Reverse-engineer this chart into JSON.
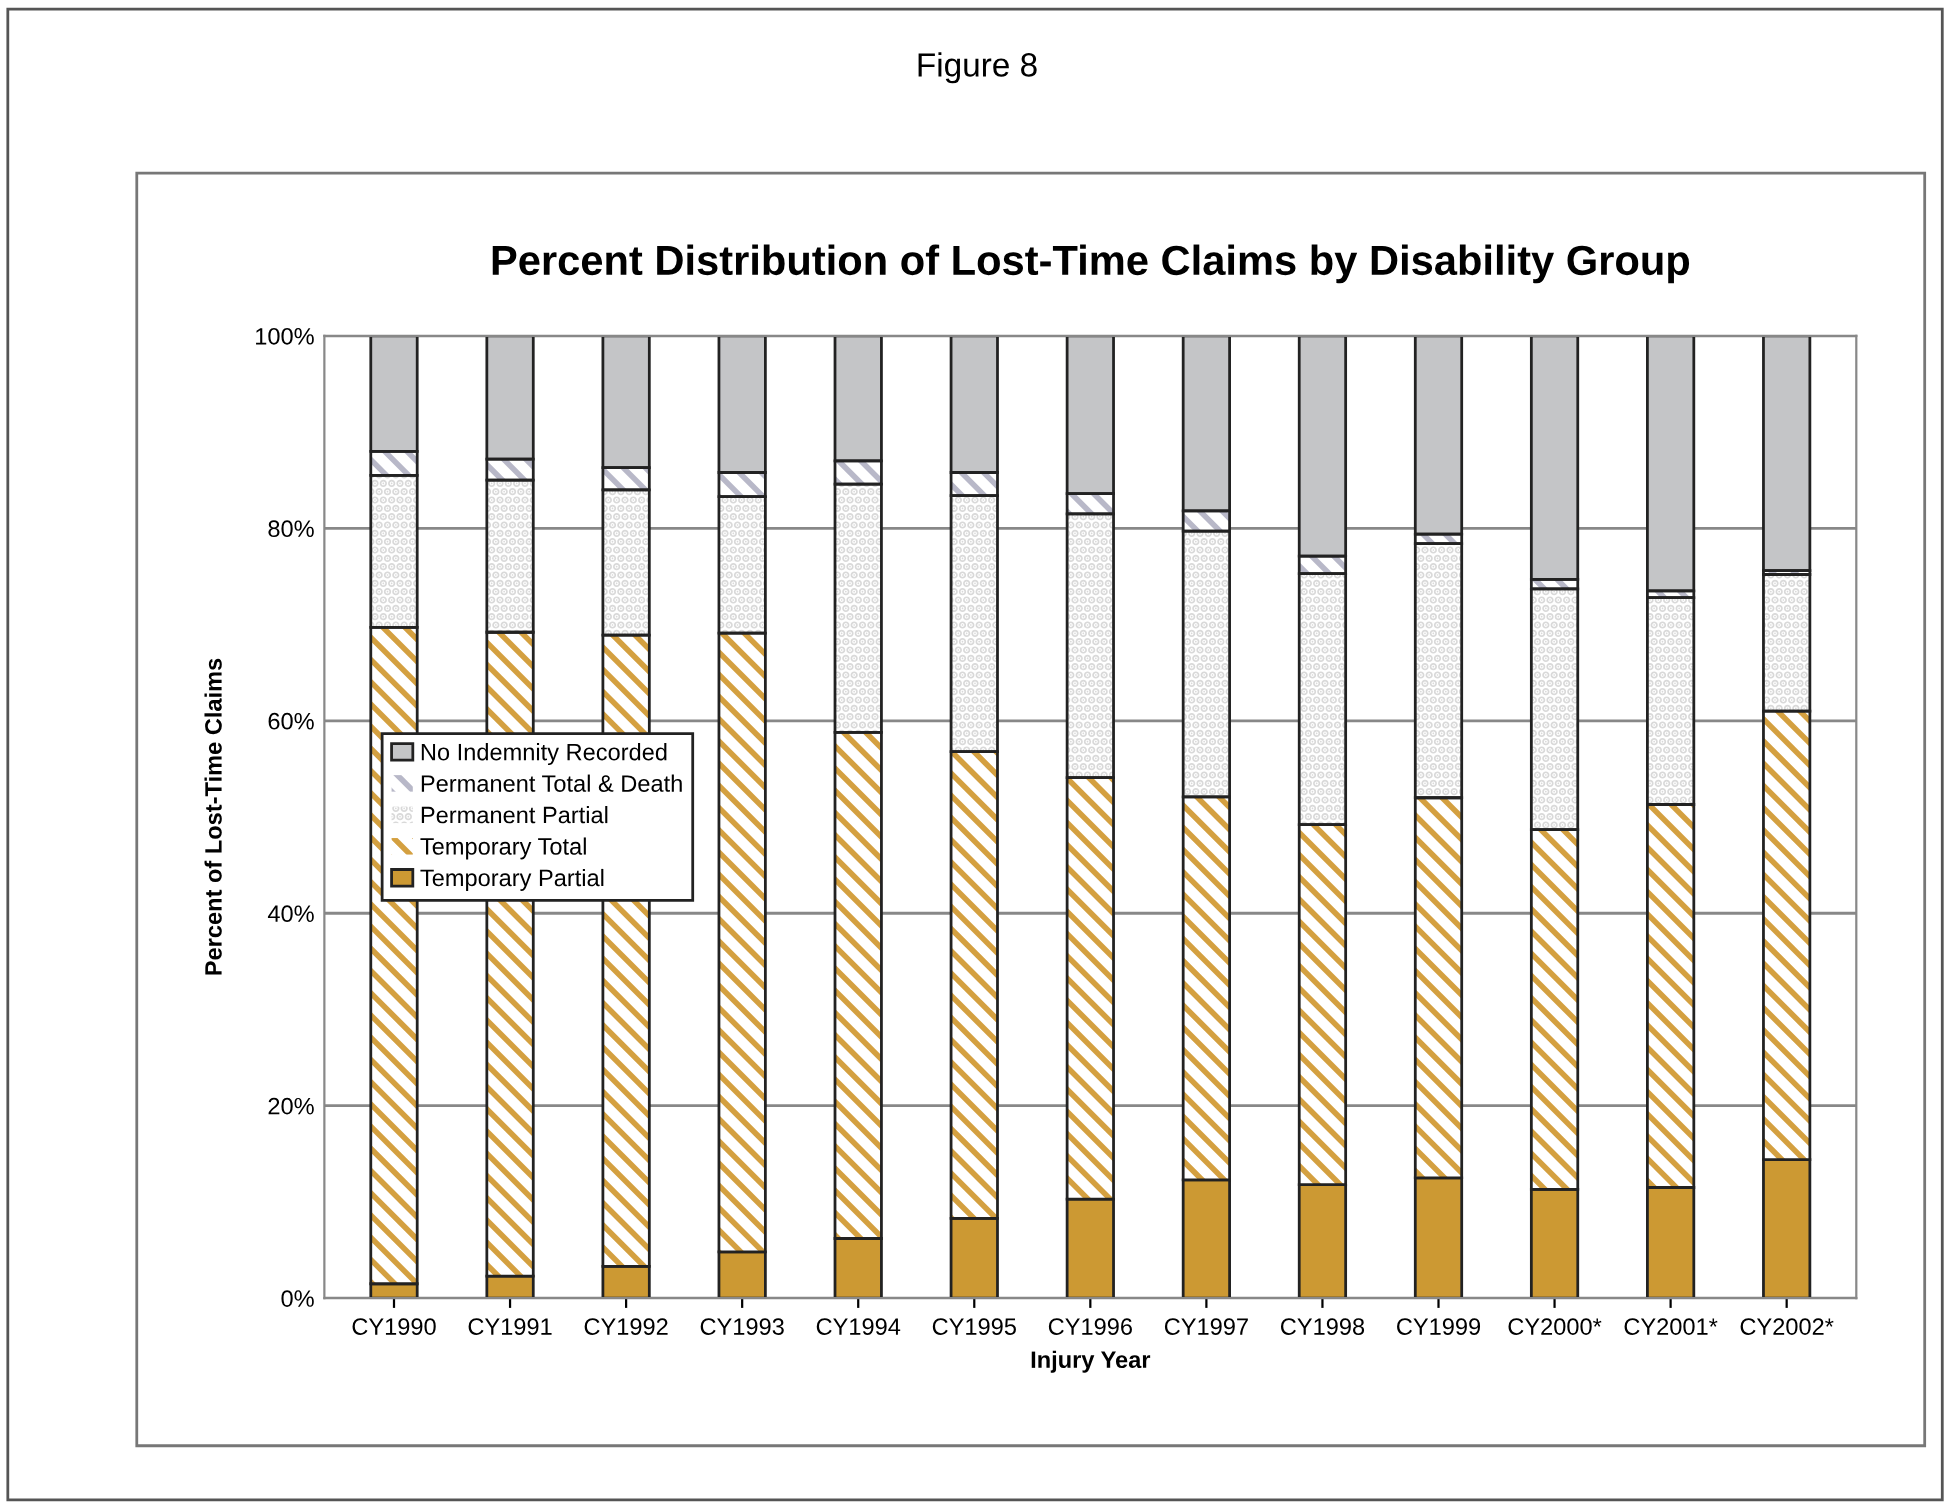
{
  "chart_data": {
    "type": "bar",
    "stacked": true,
    "title": "Percent Distribution of Lost-Time Claims by Disability Group",
    "annotations": [
      "Figure 8"
    ],
    "xlabel": "Injury Year",
    "ylabel": "Percent of Lost-Time Claims",
    "categories": [
      "CY1990",
      "CY1991",
      "CY1992",
      "CY1993",
      "CY1994",
      "CY1995",
      "CY1996",
      "CY1997",
      "CY1998",
      "CY1999",
      "CY2000*",
      "CY2001*",
      "CY2002*"
    ],
    "series": [
      {
        "name": "Temporary Partial",
        "color": "#cc9933",
        "values": [
          1.5,
          2.3,
          3.3,
          4.8,
          6.2,
          8.3,
          10.3,
          12.3,
          11.8,
          12.5,
          11.3,
          11.5,
          14.4
        ]
      },
      {
        "name": "Temporary Total",
        "color": "#d4a040",
        "values": [
          68.2,
          66.9,
          65.6,
          64.3,
          52.6,
          48.5,
          43.8,
          39.8,
          37.4,
          39.5,
          37.4,
          39.8,
          46.6
        ]
      },
      {
        "name": "Permanent Partial",
        "color": "#d9d9d9",
        "values": [
          15.8,
          15.8,
          15.1,
          14.2,
          25.8,
          26.6,
          27.4,
          27.6,
          26.1,
          26.4,
          25.0,
          21.5,
          14.2
        ]
      },
      {
        "name": "Permanent Total & Death",
        "color": "#b8b8c8",
        "values": [
          2.5,
          2.2,
          2.3,
          2.5,
          2.4,
          2.4,
          2.1,
          2.1,
          1.8,
          1.0,
          1.0,
          0.7,
          0.4
        ]
      },
      {
        "name": "No Indemnity Recorded",
        "color": "#c4c5c7",
        "values": [
          12.0,
          12.8,
          13.7,
          14.2,
          13.0,
          14.2,
          16.4,
          18.2,
          22.9,
          20.6,
          25.3,
          26.5,
          24.4
        ]
      }
    ],
    "ylim": [
      0,
      100
    ],
    "yticks": [
      {
        "value": 0,
        "label": "0%"
      },
      {
        "value": 20,
        "label": "20%"
      },
      {
        "value": 40,
        "label": "40%"
      },
      {
        "value": 60,
        "label": "60%"
      },
      {
        "value": 80,
        "label": "80%"
      },
      {
        "value": 100,
        "label": "100%"
      }
    ],
    "grid": "y",
    "legend": "center left"
  }
}
